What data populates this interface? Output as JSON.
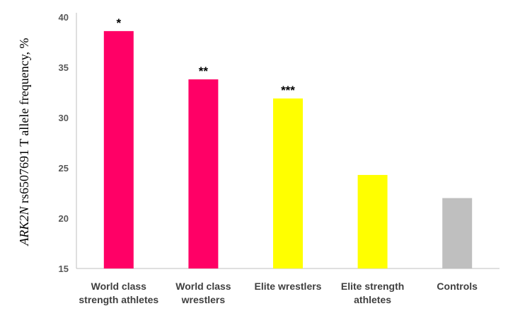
{
  "chart_data": {
    "type": "bar",
    "title": "",
    "xlabel": "",
    "ylabel": {
      "italic_part": "ARK2N",
      "rest": " rs6507691 T allele frequency, %"
    },
    "ylim": [
      15,
      40
    ],
    "yticks": [
      15,
      20,
      25,
      30,
      35,
      40
    ],
    "grid": false,
    "categories": [
      [
        "World class",
        "strength athletes"
      ],
      [
        "World class",
        "wrestlers"
      ],
      [
        "Elite wrestlers"
      ],
      [
        "Elite strength",
        "athletes"
      ],
      [
        "Controls"
      ]
    ],
    "values": [
      38.6,
      33.8,
      31.9,
      24.3,
      22.0
    ],
    "colors": [
      "#ff0066",
      "#ff0066",
      "#ffff00",
      "#ffff00",
      "#bfbfbf"
    ],
    "annotations": [
      "*",
      "**",
      "***",
      "",
      ""
    ]
  }
}
